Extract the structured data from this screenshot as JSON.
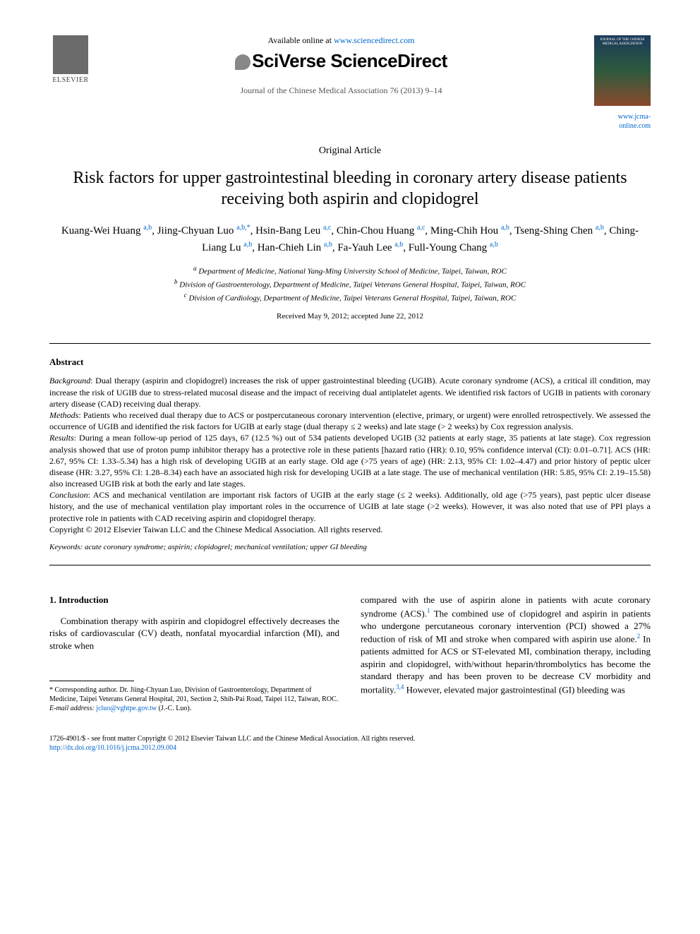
{
  "header": {
    "available_text": "Available online at ",
    "available_url": "www.sciencedirect.com",
    "platform_name": "SciVerse ScienceDirect",
    "journal_citation": "Journal of the Chinese Medical Association 76 (2013) 9–14",
    "jcma_url": "www.jcma-online.com",
    "elsevier_label": "ELSEVIER"
  },
  "article": {
    "type": "Original Article",
    "title": "Risk factors for upper gastrointestinal bleeding in coronary artery disease patients receiving both aspirin and clopidogrel",
    "authors_html": "Kuang-Wei Huang <span class='sup'>a,b</span>, Jiing-Chyuan Luo <span class='sup'>a,b,*</span>, Hsin-Bang Leu <span class='sup'>a,c</span>, Chin-Chou Huang <span class='sup'>a,c</span>, Ming-Chih Hou <span class='sup'>a,b</span>, Tseng-Shing Chen <span class='sup'>a,b</span>, Ching-Liang Lu <span class='sup'>a,b</span>, Han-Chieh Lin <span class='sup'>a,b</span>, Fa-Yauh Lee <span class='sup'>a,b</span>, Full-Young Chang <span class='sup'>a,b</span>",
    "affiliations": {
      "a": "Department of Medicine, National Yang-Ming University School of Medicine, Taipei, Taiwan, ROC",
      "b": "Division of Gastroenterology, Department of Medicine, Taipei Veterans General Hospital, Taipei, Taiwan, ROC",
      "c": "Division of Cardiology, Department of Medicine, Taipei Veterans General Hospital, Taipei, Taiwan, ROC"
    },
    "dates": "Received May 9, 2012; accepted June 22, 2012"
  },
  "abstract": {
    "heading": "Abstract",
    "background_label": "Background",
    "background": ": Dual therapy (aspirin and clopidogrel) increases the risk of upper gastrointestinal bleeding (UGIB). Acute coronary syndrome (ACS), a critical ill condition, may increase the risk of UGIB due to stress-related mucosal disease and the impact of receiving dual antiplatelet agents. We identified risk factors of UGIB in patients with coronary artery disease (CAD) receiving dual therapy.",
    "methods_label": "Methods",
    "methods": ": Patients who received dual therapy due to ACS or postpercutaneous coronary intervention (elective, primary, or urgent) were enrolled retrospectively. We assessed the occurrence of UGIB and identified the risk factors for UGIB at early stage (dual therapy ≤ 2 weeks) and late stage (> 2 weeks) by Cox regression analysis.",
    "results_label": "Results",
    "results": ": During a mean follow-up period of 125 days, 67 (12.5 %) out of 534 patients developed UGIB (32 patients at early stage, 35 patients at late stage). Cox regression analysis showed that use of proton pump inhibitor therapy has a protective role in these patients [hazard ratio (HR): 0.10, 95% confidence interval (CI): 0.01–0.71]. ACS (HR: 2.67, 95% CI: 1.33–5.34) has a high risk of developing UGIB at an early stage. Old age (>75 years of age) (HR: 2.13, 95% CI: 1.02–4.47) and prior history of peptic ulcer disease (HR: 3.27, 95% CI: 1.28–8.34) each have an associated high risk for developing UGIB at a late stage. The use of mechanical ventilation (HR: 5.85, 95% CI: 2.19–15.58) also increased UGIB risk at both the early and late stages.",
    "conclusion_label": "Conclusion",
    "conclusion": ": ACS and mechanical ventilation are important risk factors of UGIB at the early stage (≤ 2 weeks). Additionally, old age (>75 years), past peptic ulcer disease history, and the use of mechanical ventilation play important roles in the occurrence of UGIB at late stage (>2 weeks). However, it was also noted that use of PPI plays a protective role in patients with CAD receiving aspirin and clopidogrel therapy.",
    "copyright": "Copyright © 2012 Elsevier Taiwan LLC and the Chinese Medical Association. All rights reserved.",
    "keywords_label": "Keywords:",
    "keywords": " acute coronary syndrome; aspirin; clopidogrel; mechanical ventilation; upper GI bleeding"
  },
  "body": {
    "intro_heading": "1. Introduction",
    "intro_p1": "Combination therapy with aspirin and clopidogrel effectively decreases the risks of cardiovascular (CV) death, nonfatal myocardial infarction (MI), and stroke when",
    "intro_p2_a": "compared with the use of aspirin alone in patients with acute coronary syndrome (ACS).",
    "intro_p2_b": " The combined use of clopidogrel and aspirin in patients who undergone percutaneous coronary intervention (PCI) showed a 27% reduction of risk of MI and stroke when compared with aspirin use alone.",
    "intro_p2_c": " In patients admitted for ACS or ST-elevated MI, combination therapy, including aspirin and clopidogrel, with/without heparin/thrombolytics has become the standard therapy and has been proven to be decrease CV morbidity and mortality.",
    "intro_p2_d": " However, elevated major gastrointestinal (GI) bleeding was",
    "cite1": "1",
    "cite2": "2",
    "cite34": "3,4"
  },
  "footnote": {
    "corresponding": "* Corresponding author. Dr. Jiing-Chyuan Luo, Division of Gastroenterology, Department of Medicine, Taipei Veterans General Hospital, 201, Section 2, Shih-Pai Road, Taipei 112, Taiwan, ROC.",
    "email_label": "E-mail address: ",
    "email": "jcluo@vghtpe.gov.tw",
    "email_suffix": " (J.-C. Luo)."
  },
  "footer": {
    "issn": "1726-4901/$ - see front matter Copyright © 2012 Elsevier Taiwan LLC and the Chinese Medical Association. All rights reserved.",
    "doi": "http://dx.doi.org/10.1016/j.jcma.2012.09.004"
  },
  "colors": {
    "link": "#0066cc",
    "text": "#000000",
    "background": "#ffffff"
  },
  "typography": {
    "body_font": "Times New Roman",
    "title_size_pt": 18,
    "body_size_pt": 10,
    "abstract_size_pt": 9
  }
}
